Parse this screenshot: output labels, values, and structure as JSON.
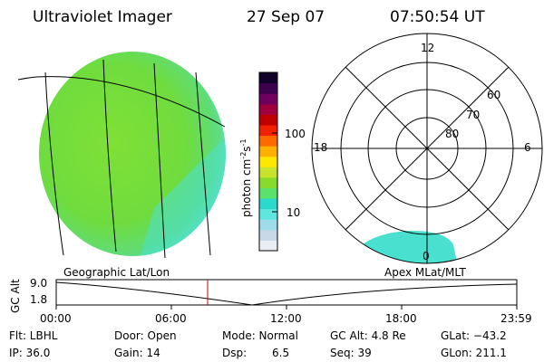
{
  "header": {
    "instrument": "Ultraviolet Imager",
    "date": "27 Sep 07",
    "time": "07:50:54 UT"
  },
  "colorbar": {
    "unit_label": "photon cm",
    "exp1": "-2",
    "mid": "s",
    "exp2": "-1",
    "ticks": [
      "100",
      "10"
    ],
    "colors": [
      "#e8eef3",
      "#c8d8e6",
      "#9fdcea",
      "#5fe6e0",
      "#2ad8cc",
      "#5be26a",
      "#86dc2a",
      "#c7e32b",
      "#ffe800",
      "#ffb000",
      "#ff6a00",
      "#f02000",
      "#c00000",
      "#a00040",
      "#700060",
      "#400050",
      "#10002a"
    ]
  },
  "left_map": {
    "label": "Geographic Lat/Lon",
    "fill_color": "#7ee039",
    "edge_color": "#5de6d6"
  },
  "polar": {
    "label": "Apex MLat/MLT",
    "lat_labels": [
      "60",
      "70",
      "80"
    ],
    "mlt_labels": {
      "top": "12",
      "left": "18",
      "right": "6",
      "bottom": "0"
    },
    "aurora_color": "#4ae0d0"
  },
  "altitude_plot": {
    "ylabel": "GC Alt",
    "yticks": [
      "9.0",
      "1.8"
    ],
    "xticks": [
      "00:00",
      "06:00",
      "12:00",
      "18:00",
      "23:59"
    ],
    "current_marker_color": "#d00000"
  },
  "footer": {
    "flt": "Flt: LBHL",
    "ip": "IP: 36.0",
    "door": "Door: Open",
    "gain": "Gain: 14",
    "mode": "Mode: Normal",
    "dsp_label": "Dsp:",
    "dsp_value": "6.5",
    "gc_alt": "GC Alt: 4.8 Re",
    "seq": "Seq: 39",
    "glat": "GLat: −43.2",
    "glon": "GLon: 211.1"
  }
}
